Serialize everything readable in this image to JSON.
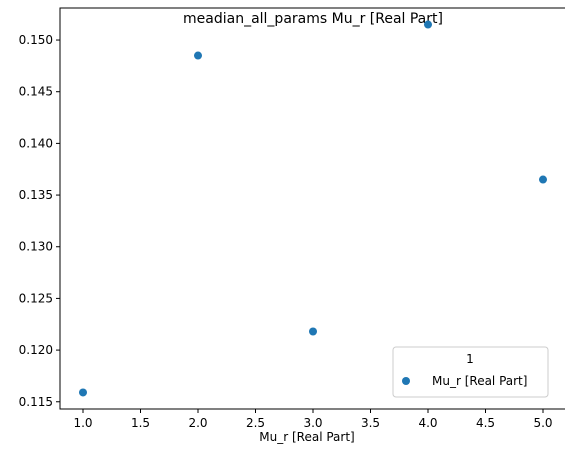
{
  "chart_data": {
    "type": "scatter",
    "title": "meadian_all_params Mu_r [Real Part]",
    "xlabel": "Mu_r [Real Part]",
    "ylabel": "",
    "xlim": [
      0.8,
      5.2
    ],
    "ylim": [
      0.1143,
      0.1531
    ],
    "xticks": [
      1.0,
      1.5,
      2.0,
      2.5,
      3.0,
      3.5,
      4.0,
      4.5,
      5.0
    ],
    "xtick_labels": [
      "1.0",
      "1.5",
      "2.0",
      "2.5",
      "3.0",
      "3.5",
      "4.0",
      "4.5",
      "5.0"
    ],
    "yticks": [
      0.115,
      0.12,
      0.125,
      0.13,
      0.135,
      0.14,
      0.145,
      0.15
    ],
    "ytick_labels": [
      "0.115",
      "0.120",
      "0.125",
      "0.130",
      "0.135",
      "0.140",
      "0.145",
      "0.150"
    ],
    "grid": false,
    "legend": {
      "title": "1",
      "placement": "lower-right",
      "entries": [
        "Mu_r [Real Part]"
      ]
    },
    "series": [
      {
        "name": "Mu_r [Real Part]",
        "color": "#1f77b4",
        "x": [
          1.0,
          2.0,
          3.0,
          4.0,
          5.0
        ],
        "y": [
          0.1159,
          0.1485,
          0.1218,
          0.1515,
          0.1365
        ]
      }
    ]
  }
}
